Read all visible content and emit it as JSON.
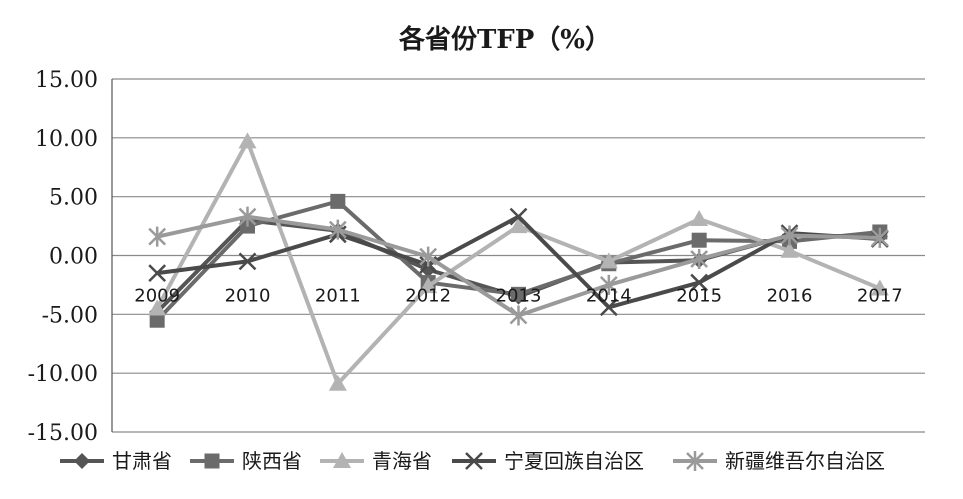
{
  "chart_data": {
    "type": "line",
    "title": "各省份TFP（%）",
    "xlabel": "",
    "ylabel": "",
    "categories": [
      "2009",
      "2010",
      "2011",
      "2012",
      "2013",
      "2014",
      "2015",
      "2016",
      "2017"
    ],
    "ylim": [
      -15,
      15
    ],
    "yticks": [
      "15.00",
      "10.00",
      "5.00",
      "0.00",
      "-5.00",
      "-10.00",
      "-15.00"
    ],
    "ytick_values": [
      15,
      10,
      5,
      0,
      -5,
      -10,
      -15
    ],
    "grid": true,
    "legend_position": "bottom",
    "series": [
      {
        "name": "甘肃省",
        "marker": "diamond",
        "color": "#555555",
        "values": [
          -4.8,
          3.0,
          2.1,
          -1.2,
          -3.5,
          -0.6,
          -0.4,
          1.7,
          1.6
        ]
      },
      {
        "name": "陕西省",
        "marker": "square",
        "color": "#6b6b6b",
        "values": [
          -5.5,
          2.5,
          4.6,
          -2.3,
          -3.3,
          -0.7,
          1.3,
          1.2,
          2.0
        ]
      },
      {
        "name": "青海省",
        "marker": "triangle",
        "color": "#b3b3b3",
        "values": [
          -4.5,
          9.7,
          -10.9,
          -2.6,
          2.5,
          -0.5,
          3.1,
          0.4,
          -2.8
        ]
      },
      {
        "name": "宁夏回族自治区",
        "marker": "x",
        "color": "#4a4a4a",
        "values": [
          -1.5,
          -0.5,
          1.8,
          -0.8,
          3.3,
          -4.4,
          -2.3,
          1.9,
          1.4
        ]
      },
      {
        "name": "新疆维吾尔自治区",
        "marker": "star",
        "color": "#9a9a9a",
        "values": [
          1.6,
          3.3,
          2.2,
          -0.1,
          -5.1,
          -2.5,
          -0.3,
          1.7,
          1.5
        ]
      }
    ]
  }
}
